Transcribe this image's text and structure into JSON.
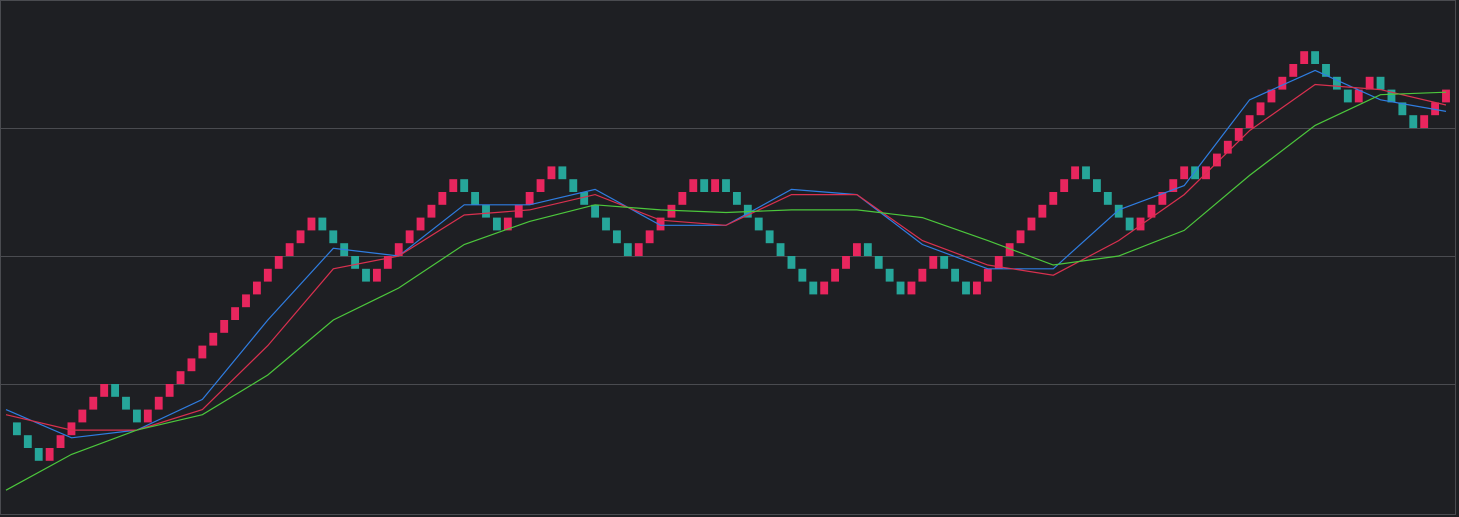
{
  "chart_data": {
    "type": "renko",
    "start": 0.7,
    "close": [
      0.6,
      0.5,
      0.4,
      0.5,
      0.6,
      0.7,
      0.8,
      0.9,
      1.0,
      0.9,
      0.8,
      0.7,
      0.8,
      0.9,
      1.0,
      1.1,
      1.2,
      1.3,
      1.4,
      1.5,
      1.6,
      1.7,
      1.8,
      1.9,
      2.0,
      2.1,
      2.2,
      2.3,
      2.2,
      2.1,
      2.0,
      1.9,
      1.8,
      1.9,
      2.0,
      2.1,
      2.2,
      2.3,
      2.4,
      2.5,
      2.6,
      2.5,
      2.4,
      2.3,
      2.2,
      2.3,
      2.4,
      2.5,
      2.6,
      2.7,
      2.6,
      2.5,
      2.4,
      2.3,
      2.2,
      2.1,
      2.0,
      2.1,
      2.2,
      2.3,
      2.4,
      2.5,
      2.6,
      2.5,
      2.6,
      2.5,
      2.4,
      2.3,
      2.2,
      2.1,
      2.0,
      1.9,
      1.8,
      1.7,
      1.8,
      1.9,
      2.0,
      2.1,
      2.0,
      1.9,
      1.8,
      1.7,
      1.8,
      1.9,
      2.0,
      1.9,
      1.8,
      1.7,
      1.8,
      1.9,
      2.0,
      2.1,
      2.2,
      2.3,
      2.4,
      2.5,
      2.6,
      2.7,
      2.6,
      2.5,
      2.4,
      2.3,
      2.2,
      2.3,
      2.4,
      2.5,
      2.6,
      2.7,
      2.6,
      2.7,
      2.8,
      2.9,
      3.0,
      3.1,
      3.2,
      3.3,
      3.4,
      3.5,
      3.6,
      3.5,
      3.4,
      3.3,
      3.2,
      3.3,
      3.4,
      3.3,
      3.2,
      3.1,
      3.0,
      3.1,
      3.2,
      3.3
    ],
    "up_color": "#e8265e",
    "down_color": "#26a69a",
    "xlim": [
      0,
      132
    ],
    "ylim": [
      0,
      4
    ],
    "gridlines": [
      1,
      2,
      3
    ],
    "lines": [
      {
        "color": "#2f7de1",
        "x": [
          0,
          6,
          12,
          18,
          24,
          30,
          36,
          42,
          48,
          54,
          60,
          66,
          72,
          78,
          84,
          90,
          96,
          102,
          108,
          114,
          120,
          126,
          132
        ],
        "values": [
          0.8,
          0.58,
          0.64,
          0.88,
          1.5,
          2.06,
          2.0,
          2.4,
          2.4,
          2.52,
          2.24,
          2.24,
          2.52,
          2.48,
          2.09,
          1.9,
          1.9,
          2.36,
          2.55,
          3.22,
          3.45,
          3.22,
          3.13
        ]
      },
      {
        "color": "#d9304f",
        "x": [
          0,
          6,
          12,
          18,
          24,
          30,
          36,
          42,
          48,
          54,
          60,
          66,
          72,
          78,
          84,
          90,
          96,
          102,
          108,
          114,
          120,
          126,
          132
        ],
        "values": [
          0.76,
          0.64,
          0.64,
          0.8,
          1.3,
          1.9,
          2.0,
          2.32,
          2.36,
          2.48,
          2.28,
          2.24,
          2.48,
          2.48,
          2.12,
          1.93,
          1.85,
          2.12,
          2.48,
          2.98,
          3.34,
          3.3,
          3.18
        ]
      },
      {
        "color": "#4cc73c",
        "x": [
          0,
          6,
          12,
          18,
          24,
          30,
          36,
          42,
          48,
          54,
          60,
          66,
          72,
          78,
          84,
          90,
          96,
          102,
          108,
          114,
          120,
          126,
          132
        ],
        "values": [
          0.17,
          0.45,
          0.64,
          0.76,
          1.07,
          1.5,
          1.75,
          2.09,
          2.27,
          2.4,
          2.36,
          2.34,
          2.36,
          2.36,
          2.3,
          2.12,
          1.93,
          2.0,
          2.2,
          2.63,
          3.02,
          3.26,
          3.28
        ]
      }
    ]
  }
}
